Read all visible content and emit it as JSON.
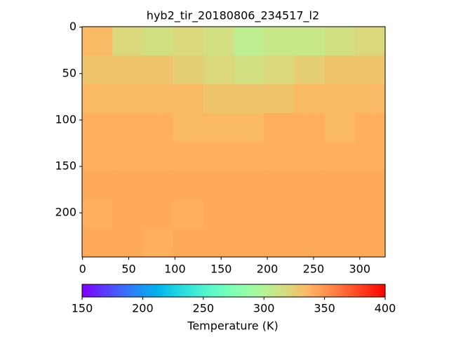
{
  "chart_data": {
    "type": "heatmap",
    "title": "hyb2_tir_20180806_234517_l2",
    "z": [
      [
        335,
        320,
        315,
        320,
        315,
        305,
        310,
        310,
        315,
        320
      ],
      [
        330,
        330,
        330,
        325,
        320,
        315,
        320,
        325,
        330,
        330
      ],
      [
        335,
        335,
        335,
        335,
        330,
        330,
        330,
        335,
        335,
        335
      ],
      [
        340,
        340,
        340,
        335,
        335,
        335,
        340,
        340,
        335,
        340
      ],
      [
        340,
        340,
        340,
        340,
        340,
        340,
        340,
        340,
        340,
        340
      ],
      [
        342,
        342,
        342,
        342,
        342,
        342,
        342,
        342,
        342,
        342
      ],
      [
        340,
        342,
        342,
        340,
        342,
        342,
        342,
        342,
        342,
        342
      ],
      [
        342,
        342,
        340,
        342,
        342,
        342,
        342,
        342,
        342,
        342
      ]
    ],
    "xlim": [
      -0.5,
      327.5
    ],
    "xticks": [
      0,
      50,
      100,
      150,
      200,
      250,
      300
    ],
    "ylim": [
      247.5,
      -0.5
    ],
    "yticks": [
      0,
      50,
      100,
      150,
      200
    ],
    "colormap": "rainbow",
    "clim": [
      150,
      400
    ],
    "cticks": [
      150,
      200,
      250,
      300,
      350,
      400
    ],
    "colorbar_label": "Temperature (K)"
  }
}
